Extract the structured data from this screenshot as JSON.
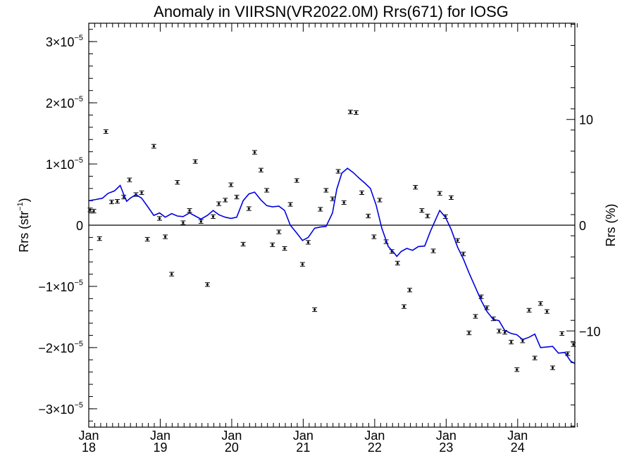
{
  "chart_data": {
    "type": "scatter",
    "title": "Anomaly in VIIRSN(VR2022.0M) Rrs(671) for IOSG",
    "ylabel": "Rrs (str",
    "ylabel_unit_sup": "−1",
    "ylabel_close": ")",
    "y2label": "Rrs (%)",
    "xlim": [
      2018.0,
      2024.8
    ],
    "ylim": [
      -3.3e-05,
      3.3e-05
    ],
    "y2lim": [
      -19.1,
      19.1
    ],
    "y_ticks": [
      {
        "value": 3e-05,
        "label": "3×10",
        "exp": "−5"
      },
      {
        "value": 2e-05,
        "label": "2×10",
        "exp": "−5"
      },
      {
        "value": 1e-05,
        "label": "1×10",
        "exp": "−5"
      },
      {
        "value": 0,
        "label": "0",
        "exp": ""
      },
      {
        "value": -1e-05,
        "label": "−1×10",
        "exp": "−5"
      },
      {
        "value": -2e-05,
        "label": "−2×10",
        "exp": "−5"
      },
      {
        "value": -3e-05,
        "label": "−3×10",
        "exp": "−5"
      }
    ],
    "y2_ticks": [
      {
        "value": 10,
        "label": "10"
      },
      {
        "value": 0,
        "label": "0"
      },
      {
        "value": -10,
        "label": "−10"
      }
    ],
    "x_ticks": [
      {
        "value": 2018,
        "month": "Jan",
        "year": "18"
      },
      {
        "value": 2019,
        "month": "Jan",
        "year": "19"
      },
      {
        "value": 2020,
        "month": "Jan",
        "year": "20"
      },
      {
        "value": 2021,
        "month": "Jan",
        "year": "21"
      },
      {
        "value": 2022,
        "month": "Jan",
        "year": "22"
      },
      {
        "value": 2023,
        "month": "Jan",
        "year": "23"
      },
      {
        "value": 2024,
        "month": "Jan",
        "year": "24"
      }
    ],
    "zero_line": true,
    "series": [
      {
        "type": "scatter_errorbar",
        "color": "#000000",
        "x": [
          2018.02,
          2018.07,
          2018.15,
          2018.24,
          2018.32,
          2018.4,
          2018.49,
          2018.57,
          2018.66,
          2018.74,
          2018.82,
          2018.91,
          2018.99,
          2019.07,
          2019.16,
          2019.24,
          2019.32,
          2019.41,
          2019.49,
          2019.57,
          2019.66,
          2019.74,
          2019.82,
          2019.91,
          2019.99,
          2020.07,
          2020.16,
          2020.24,
          2020.32,
          2020.41,
          2020.49,
          2020.57,
          2020.66,
          2020.74,
          2020.82,
          2020.91,
          2020.99,
          2021.07,
          2021.16,
          2021.24,
          2021.32,
          2021.41,
          2021.49,
          2021.57,
          2021.66,
          2021.74,
          2021.82,
          2021.91,
          2021.99,
          2022.07,
          2022.16,
          2022.24,
          2022.32,
          2022.41,
          2022.49,
          2022.57,
          2022.66,
          2022.74,
          2022.82,
          2022.91,
          2022.99,
          2023.07,
          2023.16,
          2023.24,
          2023.32,
          2023.41,
          2023.49,
          2023.57,
          2023.66,
          2023.74,
          2023.82,
          2023.91,
          2023.99,
          2024.07,
          2024.16,
          2024.24,
          2024.32,
          2024.41,
          2024.49,
          2024.62,
          2024.7,
          2024.78
        ],
        "y": [
          2.5e-06,
          2.3e-06,
          -2.2e-06,
          1.53e-05,
          3.8e-06,
          3.9e-06,
          4.6e-06,
          7.4e-06,
          5e-06,
          5.3e-06,
          -2.3e-06,
          1.29e-05,
          1.1e-06,
          -1.9e-06,
          -8e-06,
          7e-06,
          4e-07,
          2.4e-06,
          1.04e-05,
          6e-07,
          -9.7e-06,
          1.4e-06,
          3.5e-06,
          4.1e-06,
          6.6e-06,
          4.6e-06,
          -3.1e-06,
          2.7e-06,
          1.19e-05,
          9e-06,
          5.7e-06,
          -3.2e-06,
          -1.1e-06,
          -3.8e-06,
          3.4e-06,
          7.3e-06,
          -6.4e-06,
          -2.8e-06,
          -1.38e-05,
          2.6e-06,
          5.7e-06,
          4.3e-06,
          8.8e-06,
          3.7e-06,
          1.85e-05,
          1.84e-05,
          5.3e-06,
          1.5e-06,
          -1.9e-06,
          4.1e-06,
          -2.7e-06,
          -4.3e-06,
          -6.2e-06,
          -1.33e-05,
          -1.06e-05,
          6.2e-06,
          2.4e-06,
          1.5e-06,
          -4.2e-06,
          5.2e-06,
          1.4e-06,
          4.5e-06,
          -2.5e-06,
          -4.7e-06,
          -1.76e-05,
          -1.49e-05,
          -1.17e-05,
          -1.35e-05,
          -1.53e-05,
          -1.73e-05,
          -1.75e-05,
          -1.91e-05,
          -2.36e-05,
          -1.89e-05,
          -1.39e-05,
          -2.17e-05,
          -1.28e-05,
          -1.41e-05,
          -2.33e-05,
          -1.77e-05,
          -2.1e-05,
          -1.95e-05
        ],
        "errorbar_halfwidth": 3e-07
      },
      {
        "type": "line",
        "color": "#0000e0",
        "x": [
          2018.0,
          2018.1,
          2018.19,
          2018.27,
          2018.36,
          2018.44,
          2018.49,
          2018.53,
          2018.58,
          2018.66,
          2018.74,
          2018.82,
          2018.91,
          2018.99,
          2019.07,
          2019.16,
          2019.24,
          2019.32,
          2019.41,
          2019.49,
          2019.57,
          2019.66,
          2019.74,
          2019.82,
          2019.91,
          2019.99,
          2020.07,
          2020.16,
          2020.24,
          2020.32,
          2020.41,
          2020.49,
          2020.57,
          2020.66,
          2020.74,
          2020.82,
          2020.91,
          2020.99,
          2021.07,
          2021.16,
          2021.24,
          2021.32,
          2021.41,
          2021.47,
          2021.54,
          2021.62,
          2021.7,
          2021.78,
          2021.86,
          2021.94,
          2022.02,
          2022.1,
          2022.19,
          2022.27,
          2022.31,
          2022.37,
          2022.45,
          2022.53,
          2022.61,
          2022.7,
          2022.78,
          2022.86,
          2022.91,
          2022.99,
          2023.07,
          2023.16,
          2023.24,
          2023.32,
          2023.41,
          2023.49,
          2023.57,
          2023.66,
          2023.74,
          2023.82,
          2023.91,
          2023.99,
          2024.07,
          2024.16,
          2024.24,
          2024.32,
          2024.41,
          2024.49,
          2024.57,
          2024.66,
          2024.74,
          2024.8
        ],
        "y": [
          4e-06,
          4.2e-06,
          4.4e-06,
          5.2e-06,
          5.6e-06,
          6.5e-06,
          5e-06,
          3.9e-06,
          4.4e-06,
          5e-06,
          4.4e-06,
          3.1e-06,
          1.6e-06,
          2e-06,
          1.3e-06,
          1.9e-06,
          1.5e-06,
          1.4e-06,
          2e-06,
          1.5e-06,
          1e-06,
          1.6e-06,
          2.4e-06,
          1.7e-06,
          1.3e-06,
          1.1e-06,
          1.3e-06,
          4e-06,
          5.1e-06,
          5.4e-06,
          4.1e-06,
          3.2e-06,
          3e-06,
          3.1e-06,
          2.4e-06,
          0.0,
          -1.3e-06,
          -2.5e-06,
          -2e-06,
          -5e-07,
          -3e-07,
          -2e-07,
          2e-06,
          5.9e-06,
          8.5e-06,
          9.3e-06,
          8.6e-06,
          7.7e-06,
          6.9e-06,
          6e-06,
          3.3e-06,
          -5e-07,
          -3.5e-06,
          -4.5e-06,
          -5.1e-06,
          -4.3e-06,
          -3.8e-06,
          -4.1e-06,
          -3.5e-06,
          -3.4e-06,
          -1e-06,
          1.1e-06,
          2.4e-06,
          1.3e-06,
          -7e-07,
          -3.6e-06,
          -5.5e-06,
          -7.8e-06,
          -1.02e-05,
          -1.23e-05,
          -1.41e-05,
          -1.54e-05,
          -1.56e-05,
          -1.72e-05,
          -1.77e-05,
          -1.79e-05,
          -1.87e-05,
          -1.83e-05,
          -1.78e-05,
          -2e-05,
          -1.99e-05,
          -1.98e-05,
          -2.09e-05,
          -2.08e-05,
          -2.22e-05,
          -2.26e-05
        ]
      }
    ]
  }
}
